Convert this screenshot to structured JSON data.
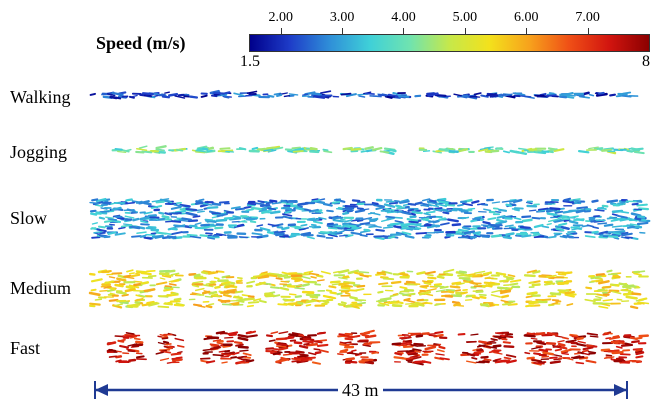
{
  "colorbar": {
    "title": "Speed (m/s)",
    "min_label": "1.5",
    "max_label": "8",
    "min": 1.5,
    "max": 8,
    "ticks": [
      "2.00",
      "3.00",
      "4.00",
      "5.00",
      "6.00",
      "7.00"
    ],
    "colors": [
      "#00008b",
      "#1e3cc8",
      "#2f8fd8",
      "#3fd0d8",
      "#6fe3b0",
      "#c6e84a",
      "#f3e11c",
      "#f7a21c",
      "#ef4f16",
      "#d2150f",
      "#8b0000"
    ]
  },
  "rows": [
    {
      "label": "Walking",
      "speed": 2.3,
      "bands": 1,
      "segments": [
        [
          0.0,
          1.0
        ]
      ]
    },
    {
      "label": "Jogging",
      "speed": 4.1,
      "bands": 1,
      "segments": [
        [
          0.04,
          0.43
        ],
        [
          0.46,
          0.56
        ],
        [
          0.59,
          0.85
        ],
        [
          0.88,
          1.0
        ]
      ]
    },
    {
      "label": "Slow",
      "speed": 2.9,
      "bands": 5,
      "segments": [
        [
          0.0,
          1.0
        ]
      ]
    },
    {
      "label": "Medium",
      "speed": 5.3,
      "bands": 4,
      "segments": [
        [
          0.0,
          0.16
        ],
        [
          0.18,
          0.5
        ],
        [
          0.52,
          0.77
        ],
        [
          0.79,
          0.87
        ],
        [
          0.9,
          1.0
        ]
      ]
    },
    {
      "label": "Fast",
      "speed": 7.4,
      "bands": 4,
      "segments": [
        [
          0.03,
          0.09
        ],
        [
          0.12,
          0.16
        ],
        [
          0.2,
          0.29
        ],
        [
          0.32,
          0.42
        ],
        [
          0.45,
          0.52
        ],
        [
          0.55,
          0.64
        ],
        [
          0.67,
          0.76
        ],
        [
          0.79,
          0.91
        ],
        [
          0.93,
          1.0
        ]
      ]
    }
  ],
  "scale": {
    "label": "43 m"
  }
}
